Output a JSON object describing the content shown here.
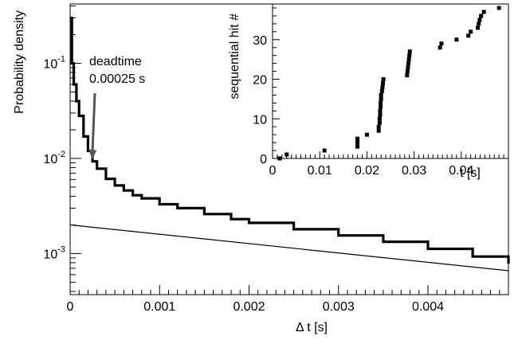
{
  "chart_data": [
    {
      "type": "line",
      "xlabel": "Δ t [s]",
      "ylabel": "Probability density",
      "xlim": [
        0,
        0.0049
      ],
      "ylim": [
        0.00037,
        0.42
      ],
      "log_y": true,
      "grid": false,
      "legend": "none",
      "x_ticks": [
        "0",
        "0.001",
        "0.002",
        "0.003",
        "0.004"
      ],
      "y_ticks": [
        {
          "base": "10",
          "exp": "-3",
          "value": 0.001
        },
        {
          "base": "10",
          "exp": "-2",
          "value": 0.01
        },
        {
          "base": "10",
          "exp": "-1",
          "value": 0.1
        }
      ],
      "annotation": {
        "line1": "deadtime",
        "line2": "0.00025 s",
        "points_to": {
          "x": 0.00025,
          "y": 0.0095
        }
      },
      "series": [
        {
          "style": "histogram",
          "color": "#000000",
          "x": [
            0.0,
            2e-05,
            4e-05,
            7e-05,
            0.0001,
            0.00015,
            0.0002,
            0.00025,
            0.0003,
            0.0004,
            0.0005,
            0.0006,
            0.0007,
            0.0008,
            0.001,
            0.0012,
            0.0015,
            0.0018,
            0.002,
            0.0025,
            0.003,
            0.0035,
            0.004,
            0.0045,
            0.0049
          ],
          "values": [
            0.3,
            0.1,
            0.06,
            0.04,
            0.028,
            0.017,
            0.012,
            0.0093,
            0.0078,
            0.0061,
            0.0052,
            0.0046,
            0.0041,
            0.0038,
            0.0033,
            0.003,
            0.0026,
            0.0023,
            0.0021,
            0.0018,
            0.00155,
            0.00133,
            0.00112,
            0.00093,
            0.00078
          ]
        },
        {
          "style": "line",
          "color": "#000000",
          "x": [
            0.0,
            0.0049
          ],
          "values": [
            0.002,
            0.00066
          ]
        }
      ]
    },
    {
      "type": "scatter",
      "xlabel": "t [s]",
      "ylabel": "sequential hit #",
      "xlim": [
        0,
        0.05
      ],
      "ylim": [
        0,
        39
      ],
      "grid": false,
      "legend": "none",
      "x_ticks": [
        "0",
        "0.01",
        "0.02",
        "0.03",
        "0.04"
      ],
      "y_ticks": [
        "0",
        "10",
        "20",
        "30"
      ],
      "points": [
        [
          0.0015,
          0
        ],
        [
          0.003,
          1
        ],
        [
          0.011,
          2
        ],
        [
          0.018,
          3
        ],
        [
          0.018,
          4
        ],
        [
          0.018,
          5
        ],
        [
          0.02,
          6
        ],
        [
          0.0225,
          7
        ],
        [
          0.0225,
          8
        ],
        [
          0.0227,
          9
        ],
        [
          0.0227,
          10
        ],
        [
          0.0228,
          11
        ],
        [
          0.0228,
          12
        ],
        [
          0.0229,
          13
        ],
        [
          0.0229,
          14
        ],
        [
          0.023,
          15
        ],
        [
          0.023,
          16
        ],
        [
          0.0232,
          17
        ],
        [
          0.0233,
          18
        ],
        [
          0.0234,
          19
        ],
        [
          0.0235,
          20
        ],
        [
          0.0285,
          21
        ],
        [
          0.0286,
          22
        ],
        [
          0.0287,
          23
        ],
        [
          0.0288,
          24
        ],
        [
          0.0289,
          25
        ],
        [
          0.029,
          26
        ],
        [
          0.0291,
          27
        ],
        [
          0.0355,
          28
        ],
        [
          0.0358,
          29
        ],
        [
          0.039,
          30
        ],
        [
          0.0415,
          31
        ],
        [
          0.042,
          32
        ],
        [
          0.0435,
          33
        ],
        [
          0.0437,
          34
        ],
        [
          0.0439,
          35
        ],
        [
          0.0442,
          36
        ],
        [
          0.0448,
          37
        ],
        [
          0.048,
          38
        ]
      ]
    }
  ]
}
